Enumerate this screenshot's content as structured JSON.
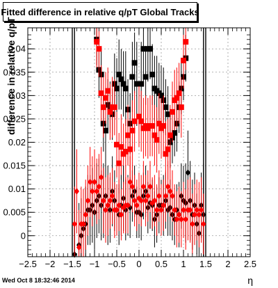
{
  "chart_data": {
    "type": "scatter",
    "title": "Fitted difference in relative q/pT  Global Tracks",
    "ylabel": "difference in relative q/pT",
    "xlabel": "η",
    "timestamp": "Wed Oct  8 18:32:46 2014",
    "xlim": [
      -2.5,
      2.5
    ],
    "ylim": [
      -0.0045,
      0.0445
    ],
    "x_ticks": [
      "−2.5",
      "−2",
      "−1.5",
      "−1",
      "−0.5",
      "0",
      "0.5",
      "1",
      "1.5",
      "2",
      "2.5"
    ],
    "y_ticks": [
      "0",
      "0.005",
      "0.01",
      "0.015",
      "0.02",
      "0.025",
      "0.03",
      "0.035",
      "0.04"
    ],
    "grid": true,
    "colors": {
      "black_series": "#000000",
      "red_series": "#ff0000"
    },
    "series": [
      {
        "marker": "square",
        "color": "#000000",
        "x": [
          -0.95,
          -0.9,
          -0.85,
          -0.8,
          -0.75,
          -0.7,
          -0.65,
          -0.6,
          -0.55,
          -0.5,
          -0.45,
          -0.4,
          -0.35,
          -0.3,
          -0.25,
          -0.2,
          -0.15,
          -0.1,
          -0.05,
          0.05,
          0.1,
          0.15,
          0.2,
          0.25,
          0.3,
          0.35,
          0.4,
          0.45,
          0.5,
          0.55,
          0.6,
          0.65,
          0.7,
          0.75,
          0.8,
          0.85,
          0.9,
          0.95,
          1.0,
          1.05
        ],
        "y": [
          0.042,
          0.0355,
          0.0345,
          0.024,
          0.0225,
          0.028,
          0.0275,
          0.026,
          0.0325,
          0.0315,
          0.0345,
          0.0335,
          0.0325,
          0.0315,
          0.027,
          0.024,
          0.034,
          0.037,
          0.0325,
          0.0325,
          0.04,
          0.034,
          0.04,
          0.04,
          0.0345,
          0.0315,
          0.031,
          0.0305,
          0.03,
          0.029,
          0.0275,
          0.026,
          0.02,
          0.021,
          0.022,
          0.024,
          0.0275,
          0.0315,
          0.034,
          0.038
        ],
        "yerr": [
          0.0055,
          0.006,
          0.0055,
          0.006,
          0.0065,
          0.0055,
          0.0055,
          0.0055,
          0.0065,
          0.0065,
          0.0075,
          0.0065,
          0.007,
          0.008,
          0.0065,
          0.0065,
          0.0075,
          0.0065,
          0.009,
          0.009,
          0.007,
          0.006,
          0.007,
          0.0065,
          0.0065,
          0.007,
          0.0075,
          0.0065,
          0.0065,
          0.007,
          0.006,
          0.006,
          0.0055,
          0.0055,
          0.005,
          0.006,
          0.0055,
          0.0055,
          0.005,
          0.005
        ]
      },
      {
        "marker": "square",
        "color": "#ff0000",
        "x": [
          -0.95,
          -0.9,
          -0.85,
          -0.8,
          -0.75,
          -0.7,
          -0.65,
          -0.6,
          -0.55,
          -0.5,
          -0.45,
          -0.4,
          -0.35,
          -0.3,
          -0.25,
          -0.2,
          -0.15,
          -0.1,
          0.0,
          0.05,
          0.1,
          0.15,
          0.2,
          0.25,
          0.3,
          0.35,
          0.4,
          0.45,
          0.5,
          0.55,
          0.6,
          0.65,
          0.7,
          0.75,
          0.8,
          0.85,
          0.9,
          0.95,
          1.0,
          1.05
        ],
        "y": [
          0.0415,
          0.04,
          0.0305,
          0.0275,
          0.0295,
          0.031,
          0.0265,
          0.0275,
          0.0275,
          0.0195,
          0.0155,
          0.019,
          0.0175,
          0.018,
          0.0215,
          0.0185,
          0.0225,
          0.0245,
          0.0255,
          0.0245,
          0.023,
          0.0235,
          0.023,
          0.0235,
          0.0235,
          0.0215,
          0.0205,
          0.024,
          0.023,
          0.0235,
          0.0175,
          0.0185,
          0.0215,
          0.0265,
          0.029,
          0.0295,
          0.0305,
          0.0275,
          0.0375,
          0.0415
        ],
        "yerr": [
          0.0055,
          0.006,
          0.006,
          0.0065,
          0.0055,
          0.005,
          0.006,
          0.0065,
          0.006,
          0.007,
          0.0065,
          0.007,
          0.0065,
          0.007,
          0.0065,
          0.0065,
          0.0065,
          0.0065,
          0.0065,
          0.0065,
          0.0065,
          0.0065,
          0.0065,
          0.0065,
          0.0065,
          0.0065,
          0.007,
          0.0065,
          0.0065,
          0.0065,
          0.007,
          0.0065,
          0.0065,
          0.0065,
          0.0065,
          0.0065,
          0.0065,
          0.0065,
          0.006,
          0.006
        ]
      },
      {
        "marker": "diamond",
        "color": "#000000",
        "x": [
          -1.45,
          -1.35,
          -1.3,
          -1.25,
          -1.2,
          -1.15,
          -1.1,
          -1.05,
          -1.0,
          -0.95,
          -0.9,
          -0.85,
          -0.8,
          -0.75,
          -0.7,
          -0.65,
          -0.6,
          -0.55,
          -0.5,
          -0.45,
          -0.4,
          -0.35,
          -0.3,
          -0.25,
          -0.2,
          -0.15,
          -0.1,
          -0.05,
          0.0,
          0.05,
          0.1,
          0.15,
          0.2,
          0.25,
          0.3,
          0.35,
          0.4,
          0.45,
          0.5,
          0.55,
          0.6,
          0.65,
          0.7,
          0.75,
          0.8,
          0.85,
          0.9,
          0.95,
          1.0,
          1.05,
          1.1,
          1.15,
          1.2,
          1.25,
          1.3,
          1.35,
          1.4,
          1.45
        ],
        "y": [
          -0.004,
          -0.002,
          0.0,
          0.0015,
          0.0025,
          0.0055,
          0.0055,
          0.0065,
          0.005,
          0.0075,
          0.0085,
          0.0065,
          0.0075,
          0.0085,
          0.0065,
          0.0055,
          0.0095,
          0.0075,
          0.0055,
          0.0045,
          0.0065,
          0.008,
          0.0055,
          0.0065,
          0.006,
          0.0085,
          0.0095,
          0.005,
          0.005,
          0.0045,
          0.0085,
          0.0095,
          0.006,
          0.007,
          0.0065,
          0.0035,
          0.0045,
          0.0065,
          0.0065,
          0.0065,
          0.0075,
          0.0055,
          0.006,
          0.0045,
          0.0035,
          0.0055,
          0.0045,
          0.0085,
          0.0075,
          0.007,
          0.0135,
          0.0075,
          0.0045,
          0.0065,
          0.0025,
          0.0005,
          0.0065,
          0.0045
        ],
        "yerr": [
          0.014,
          0.009,
          0.008,
          0.008,
          0.008,
          0.0075,
          0.0075,
          0.008,
          0.008,
          0.008,
          0.008,
          0.0075,
          0.008,
          0.0085,
          0.0085,
          0.007,
          0.0075,
          0.0065,
          0.0055,
          0.0065,
          0.0065,
          0.007,
          0.0065,
          0.0065,
          0.0065,
          0.0055,
          0.0055,
          0.0055,
          0.0055,
          0.0055,
          0.005,
          0.0055,
          0.0055,
          0.0055,
          0.0055,
          0.006,
          0.006,
          0.006,
          0.0055,
          0.0065,
          0.006,
          0.0055,
          0.006,
          0.0055,
          0.0055,
          0.0055,
          0.007,
          0.007,
          0.0075,
          0.0085,
          0.009,
          0.0085,
          0.0075,
          0.007,
          0.0065,
          0.0065,
          0.007,
          0.011
        ]
      },
      {
        "marker": "diamond",
        "color": "#ff0000",
        "x": [
          -1.45,
          -1.4,
          -1.35,
          -1.3,
          -1.25,
          -1.2,
          -1.15,
          -1.1,
          -1.05,
          -1.0,
          -0.95,
          -0.9,
          -0.85,
          -0.8,
          -0.75,
          -0.7,
          -0.65,
          -0.6,
          -0.55,
          -0.5,
          -0.45,
          -0.4,
          -0.35,
          -0.3,
          -0.25,
          -0.2,
          -0.15,
          -0.1,
          -0.05,
          0.0,
          0.05,
          0.1,
          0.15,
          0.2,
          0.25,
          0.3,
          0.35,
          0.4,
          0.45,
          0.5,
          0.55,
          0.6,
          0.65,
          0.7,
          0.75,
          0.8,
          0.85,
          0.9,
          0.95,
          1.0,
          1.05,
          1.1,
          1.15,
          1.2,
          1.25,
          1.3,
          1.35,
          1.4,
          1.45
        ],
        "y": [
          0.0025,
          0.0095,
          -0.0025,
          0.0025,
          0.0025,
          0.0045,
          0.0075,
          0.0115,
          0.0095,
          0.0115,
          0.0095,
          0.0105,
          0.0125,
          0.0075,
          0.0055,
          0.0065,
          0.0075,
          0.0085,
          0.0055,
          0.0055,
          0.0065,
          0.0045,
          0.006,
          0.0065,
          0.0065,
          0.0115,
          0.0105,
          0.0075,
          0.0065,
          0.008,
          0.0075,
          0.0105,
          0.0075,
          0.0085,
          0.0105,
          0.007,
          0.0075,
          0.0055,
          0.0085,
          0.0055,
          0.0065,
          0.0085,
          0.0105,
          0.0095,
          0.0085,
          0.0055,
          0.0035,
          0.0045,
          0.0035,
          0.0055,
          0.0035,
          0.0055,
          0.0055,
          0.0025,
          0.0045,
          0.0055,
          0.0045,
          0.0055,
          0.0025
        ],
        "yerr": [
          0.008,
          0.009,
          0.008,
          0.008,
          0.0075,
          0.0075,
          0.0075,
          0.0075,
          0.0075,
          0.007,
          0.007,
          0.007,
          0.0065,
          0.007,
          0.007,
          0.0065,
          0.006,
          0.006,
          0.006,
          0.0055,
          0.0055,
          0.0055,
          0.0055,
          0.006,
          0.006,
          0.0055,
          0.0055,
          0.0055,
          0.0055,
          0.0055,
          0.0055,
          0.0055,
          0.0055,
          0.0055,
          0.0055,
          0.0055,
          0.0055,
          0.0055,
          0.0055,
          0.0055,
          0.0055,
          0.0055,
          0.0055,
          0.0055,
          0.0055,
          0.0055,
          0.006,
          0.006,
          0.006,
          0.006,
          0.0065,
          0.0065,
          0.007,
          0.0065,
          0.0065,
          0.0065,
          0.007,
          0.007,
          0.0065
        ]
      }
    ]
  }
}
